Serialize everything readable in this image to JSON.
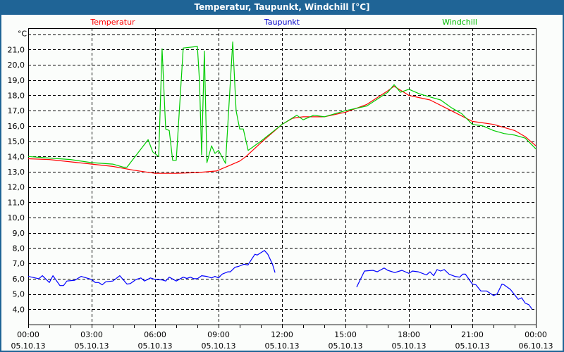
{
  "window": {
    "title": "Temperatur, Taupunkt, Windchill [°C]"
  },
  "chart_data": {
    "type": "line",
    "title": "Temperatur, Taupunkt, Windchill [°C]",
    "ylabel": "°C",
    "xlabel": "",
    "x_unit": "hours since 05.10.13 00:00",
    "xlim": [
      0,
      24
    ],
    "ylim": [
      3.0,
      22.4
    ],
    "grid": true,
    "y_ticks": [
      "4,0",
      "5,0",
      "6,0",
      "7,0",
      "8,0",
      "9,0",
      "10,0",
      "11,0",
      "12,0",
      "13,0",
      "14,0",
      "15,0",
      "16,0",
      "17,0",
      "18,0",
      "19,0",
      "20,0",
      "21,0"
    ],
    "y_tick_values": [
      4,
      5,
      6,
      7,
      8,
      9,
      10,
      11,
      12,
      13,
      14,
      15,
      16,
      17,
      18,
      19,
      20,
      21
    ],
    "x_ticks": [
      {
        "time": "00:00",
        "date": "05.10.13",
        "h": 0
      },
      {
        "time": "03:00",
        "date": "05.10.13",
        "h": 3
      },
      {
        "time": "06:00",
        "date": "05.10.13",
        "h": 6
      },
      {
        "time": "09:00",
        "date": "05.10.13",
        "h": 9
      },
      {
        "time": "12:00",
        "date": "05.10.13",
        "h": 12
      },
      {
        "time": "15:00",
        "date": "05.10.13",
        "h": 15
      },
      {
        "time": "18:00",
        "date": "05.10.13",
        "h": 18
      },
      {
        "time": "21:00",
        "date": "05.10.13",
        "h": 21
      },
      {
        "time": "00:00",
        "date": "06.10.13",
        "h": 24
      }
    ],
    "series": [
      {
        "name": "Temperatur",
        "color": "#ff0000",
        "legend_color": "#ff0000",
        "points": [
          [
            0,
            13.85
          ],
          [
            1,
            13.8
          ],
          [
            2,
            13.65
          ],
          [
            3,
            13.5
          ],
          [
            4,
            13.35
          ],
          [
            5,
            13.1
          ],
          [
            6,
            12.9
          ],
          [
            7,
            12.9
          ],
          [
            8,
            12.95
          ],
          [
            8.9,
            13.05
          ],
          [
            9.5,
            13.4
          ],
          [
            10,
            13.7
          ],
          [
            10.3,
            14.0
          ],
          [
            11,
            14.9
          ],
          [
            12,
            16.1
          ],
          [
            12.5,
            16.5
          ],
          [
            13,
            16.6
          ],
          [
            14,
            16.6
          ],
          [
            15,
            16.9
          ],
          [
            16,
            17.4
          ],
          [
            17,
            18.3
          ],
          [
            17.3,
            18.6
          ],
          [
            18,
            18.0
          ],
          [
            19,
            17.7
          ],
          [
            20,
            17.0
          ],
          [
            21,
            16.3
          ],
          [
            22,
            16.1
          ],
          [
            23,
            15.7
          ],
          [
            23.5,
            15.3
          ],
          [
            24,
            14.7
          ]
        ]
      },
      {
        "name": "Taupunkt",
        "color": "#0000ff",
        "legend_color": "#0000cc",
        "points": [
          [
            0,
            6.15
          ],
          [
            0.5,
            6.0
          ],
          [
            0.67,
            6.2
          ],
          [
            1,
            5.75
          ],
          [
            1.17,
            6.2
          ],
          [
            1.5,
            5.55
          ],
          [
            1.67,
            5.55
          ],
          [
            1.83,
            5.85
          ],
          [
            2.2,
            5.9
          ],
          [
            2.5,
            6.15
          ],
          [
            3,
            5.95
          ],
          [
            3.17,
            5.75
          ],
          [
            3.33,
            5.75
          ],
          [
            3.5,
            5.6
          ],
          [
            3.67,
            5.8
          ],
          [
            4,
            5.85
          ],
          [
            4.33,
            6.2
          ],
          [
            4.67,
            5.65
          ],
          [
            4.83,
            5.68
          ],
          [
            5.1,
            5.95
          ],
          [
            5.33,
            6.05
          ],
          [
            5.5,
            5.85
          ],
          [
            5.78,
            6.05
          ],
          [
            6,
            5.95
          ],
          [
            6.33,
            5.92
          ],
          [
            6.5,
            5.85
          ],
          [
            6.67,
            6.1
          ],
          [
            7,
            5.85
          ],
          [
            7.33,
            6.1
          ],
          [
            7.5,
            6.02
          ],
          [
            7.67,
            6.1
          ],
          [
            7.83,
            6.0
          ],
          [
            8,
            6.0
          ],
          [
            8.2,
            6.2
          ],
          [
            8.44,
            6.15
          ],
          [
            8.67,
            6.05
          ],
          [
            8.83,
            6.15
          ],
          [
            9,
            6.05
          ],
          [
            9.17,
            6.3
          ],
          [
            9.44,
            6.45
          ],
          [
            9.56,
            6.45
          ],
          [
            9.78,
            6.75
          ],
          [
            9.94,
            6.8
          ],
          [
            10.2,
            6.95
          ],
          [
            10.39,
            6.9
          ],
          [
            10.55,
            7.25
          ],
          [
            10.72,
            7.6
          ],
          [
            10.83,
            7.55
          ],
          [
            11.17,
            7.85
          ],
          [
            11.33,
            7.6
          ],
          [
            11.55,
            6.95
          ],
          [
            11.67,
            6.4
          ],
          null,
          [
            15.53,
            5.45
          ],
          [
            15.9,
            6.5
          ],
          [
            16.3,
            6.55
          ],
          [
            16.5,
            6.45
          ],
          [
            16.83,
            6.7
          ],
          [
            17.0,
            6.55
          ],
          [
            17.33,
            6.4
          ],
          [
            17.67,
            6.55
          ],
          [
            18,
            6.35
          ],
          [
            18.17,
            6.5
          ],
          [
            18.44,
            6.45
          ],
          [
            18.83,
            6.25
          ],
          [
            19,
            6.45
          ],
          [
            19.17,
            6.2
          ],
          [
            19.33,
            6.6
          ],
          [
            19.5,
            6.5
          ],
          [
            19.67,
            6.6
          ],
          [
            19.9,
            6.3
          ],
          [
            20.17,
            6.15
          ],
          [
            20.4,
            6.1
          ],
          [
            20.55,
            6.3
          ],
          [
            20.67,
            6.3
          ],
          [
            21,
            5.65
          ],
          [
            21.17,
            5.6
          ],
          [
            21.4,
            5.2
          ],
          [
            21.67,
            5.2
          ],
          [
            22,
            4.9
          ],
          [
            22.17,
            5.0
          ],
          [
            22.4,
            5.65
          ],
          [
            22.5,
            5.6
          ],
          [
            22.8,
            5.3
          ],
          [
            23.17,
            4.65
          ],
          [
            23.33,
            4.75
          ],
          [
            23.5,
            4.4
          ],
          [
            23.67,
            4.3
          ],
          [
            23.83,
            4.0
          ]
        ]
      },
      {
        "name": "Windchill",
        "color": "#00cc00",
        "legend_color": "#00bb00",
        "points": [
          [
            0,
            14.0
          ],
          [
            1,
            13.9
          ],
          [
            2,
            13.8
          ],
          [
            3,
            13.6
          ],
          [
            4,
            13.5
          ],
          [
            4.5,
            13.3
          ],
          [
            4.67,
            13.3
          ],
          [
            5.67,
            15.1
          ],
          [
            5.89,
            14.3
          ],
          [
            6.17,
            14.0
          ],
          [
            6.33,
            21.05
          ],
          [
            6.5,
            15.8
          ],
          [
            6.67,
            15.7
          ],
          [
            6.83,
            13.75
          ],
          [
            7,
            13.75
          ],
          [
            7.33,
            21.1
          ],
          [
            8,
            21.2
          ],
          [
            8.1,
            18.9
          ],
          [
            8.2,
            14.1
          ],
          [
            8.33,
            20.9
          ],
          [
            8.45,
            13.6
          ],
          [
            8.67,
            14.7
          ],
          [
            8.83,
            14.2
          ],
          [
            9,
            14.4
          ],
          [
            9.33,
            13.55
          ],
          [
            9.67,
            21.5
          ],
          [
            9.83,
            17.0
          ],
          [
            10,
            15.8
          ],
          [
            10.17,
            15.8
          ],
          [
            10.4,
            14.4
          ],
          [
            11,
            15.0
          ],
          [
            12,
            16.1
          ],
          [
            12.7,
            16.7
          ],
          [
            13,
            16.4
          ],
          [
            13.5,
            16.7
          ],
          [
            14,
            16.6
          ],
          [
            15,
            17.0
          ],
          [
            16,
            17.3
          ],
          [
            17,
            18.2
          ],
          [
            17.3,
            18.7
          ],
          [
            17.6,
            18.2
          ],
          [
            18,
            18.4
          ],
          [
            18.5,
            18.1
          ],
          [
            19,
            17.9
          ],
          [
            19.5,
            17.7
          ],
          [
            20,
            17.2
          ],
          [
            20.5,
            16.8
          ],
          [
            21,
            16.1
          ],
          [
            21.5,
            16.0
          ],
          [
            22,
            15.7
          ],
          [
            22.5,
            15.5
          ],
          [
            23,
            15.4
          ],
          [
            23.5,
            15.2
          ],
          [
            24,
            14.5
          ]
        ]
      }
    ]
  }
}
